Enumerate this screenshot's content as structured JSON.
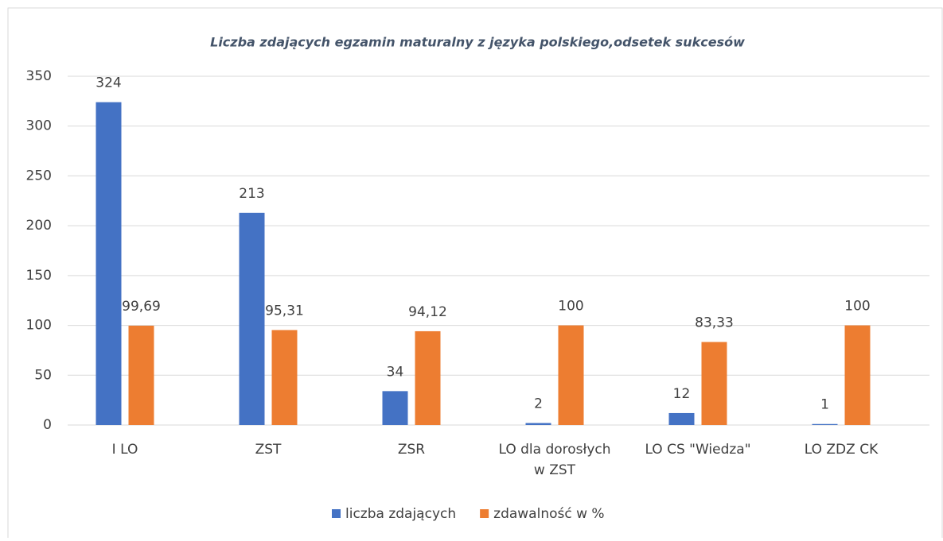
{
  "chart_data": {
    "type": "bar",
    "title": "Liczba zdających egzamin maturalny z języka polskiego,odsetek sukcesów",
    "categories": [
      "I LO",
      "ZST",
      "ZSR",
      "LO dla dorosłych w ZST",
      "LO CS \"Wiedza\"",
      "LO ZDZ CK"
    ],
    "series": [
      {
        "name": "liczba zdających",
        "color": "#4472c4",
        "values": [
          324,
          213,
          34,
          2,
          12,
          1
        ]
      },
      {
        "name": "zdawalność w %",
        "color": "#ed7d31",
        "values": [
          99.69,
          95.31,
          94.12,
          100,
          83.33,
          100
        ],
        "value_labels": [
          "99,69",
          "95,31",
          "94,12",
          "100",
          "83,33",
          "100"
        ]
      }
    ],
    "ylim": [
      0,
      350
    ],
    "yticks": [
      0,
      50,
      100,
      150,
      200,
      250,
      300,
      350
    ],
    "grid": true,
    "legend": "bottom"
  }
}
